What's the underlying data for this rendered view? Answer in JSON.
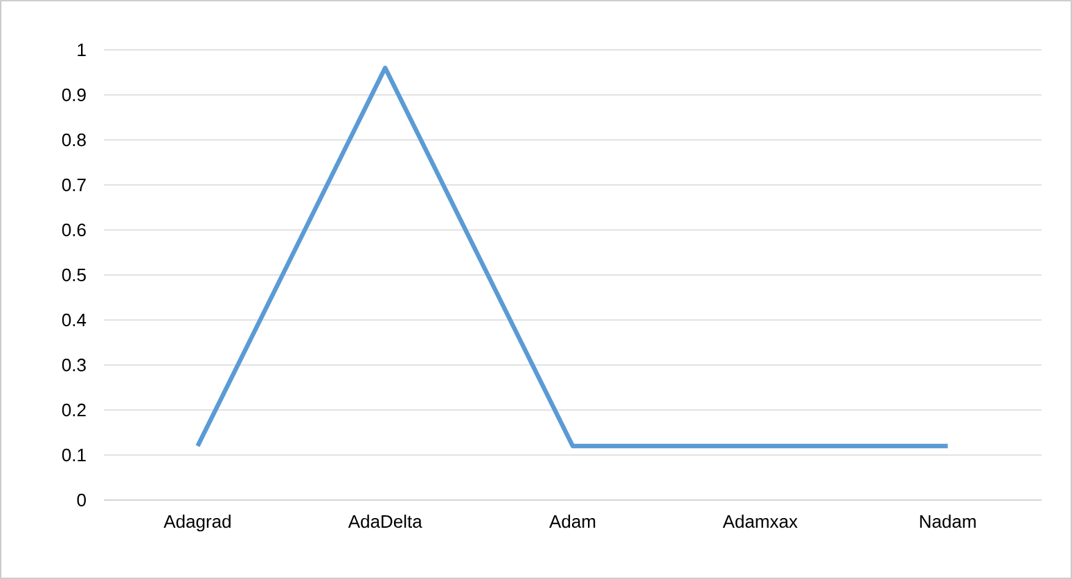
{
  "chart_data": {
    "type": "line",
    "categories": [
      "Adagrad",
      "AdaDelta",
      "Adam",
      "Adamxax",
      "Nadam"
    ],
    "values": [
      0.12,
      0.96,
      0.12,
      0.12,
      0.12
    ],
    "color": "#5b9bd5",
    "ylim": [
      0,
      1
    ],
    "yticks": [
      0,
      0.1,
      0.2,
      0.3,
      0.4,
      0.5,
      0.6,
      0.7,
      0.8,
      0.9,
      1
    ],
    "grid": "y"
  }
}
